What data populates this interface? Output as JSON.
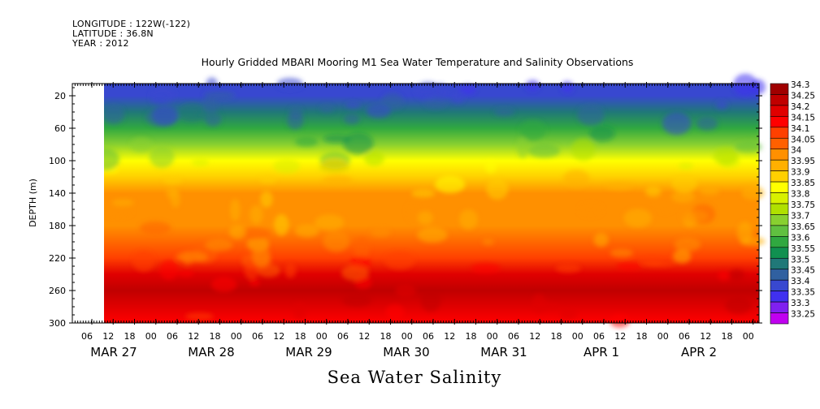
{
  "header": {
    "longitude": "LONGITUDE : 122W(-122)",
    "latitude": "LATITUDE : 36.8N",
    "year": "YEAR : 2012"
  },
  "chart_data": {
    "type": "heatmap",
    "title": "Hourly Gridded MBARI Mooring M1 Sea Water Temperature and Salinity Observations",
    "xlabel": "Sea Water Salinity",
    "ylabel": "DEPTH (m)",
    "ylim": [
      300,
      5
    ],
    "y_ticks": [
      20,
      60,
      100,
      140,
      180,
      220,
      260,
      300
    ],
    "x_hour_ticks": [
      "06",
      "12",
      "18",
      "00",
      "06",
      "12",
      "18",
      "00",
      "06",
      "12",
      "18",
      "00",
      "06",
      "12",
      "18",
      "00",
      "06",
      "12",
      "18",
      "00",
      "06",
      "12",
      "18",
      "00",
      "06",
      "12",
      "18",
      "00",
      "06",
      "12",
      "18",
      "00"
    ],
    "x_date_labels": [
      "MAR 27",
      "MAR 28",
      "MAR 29",
      "MAR 30",
      "MAR 31",
      "APR  1",
      "APR  2"
    ],
    "colorbar_labels": [
      "34.3",
      "34.25",
      "34.2",
      "34.15",
      "34.1",
      "34.05",
      "34",
      "33.95",
      "33.9",
      "33.85",
      "33.8",
      "33.75",
      "33.7",
      "33.65",
      "33.6",
      "33.55",
      "33.5",
      "33.45",
      "33.4",
      "33.35",
      "33.3",
      "33.25"
    ],
    "colorbar_colors": [
      "#a00000",
      "#c00000",
      "#e00000",
      "#ff0000",
      "#ff4000",
      "#ff6000",
      "#ff9000",
      "#ffb000",
      "#ffd000",
      "#ffff00",
      "#d8f000",
      "#b0e000",
      "#88d030",
      "#60c040",
      "#30a840",
      "#109050",
      "#207878",
      "#3060a0",
      "#3848d0",
      "#4030f0",
      "#8020f0",
      "#c000f0"
    ],
    "depth_profile": [
      {
        "depth": 5,
        "value": 33.42
      },
      {
        "depth": 20,
        "value": 33.44
      },
      {
        "depth": 40,
        "value": 33.5
      },
      {
        "depth": 60,
        "value": 33.6
      },
      {
        "depth": 80,
        "value": 33.72
      },
      {
        "depth": 100,
        "value": 33.85
      },
      {
        "depth": 120,
        "value": 33.94
      },
      {
        "depth": 140,
        "value": 34.0
      },
      {
        "depth": 180,
        "value": 34.03
      },
      {
        "depth": 220,
        "value": 34.12
      },
      {
        "depth": 240,
        "value": 34.2
      },
      {
        "depth": 260,
        "value": 34.25
      },
      {
        "depth": 280,
        "value": 34.2
      },
      {
        "depth": 300,
        "value": 34.15
      }
    ],
    "grid": false,
    "legend_placement": "right"
  }
}
